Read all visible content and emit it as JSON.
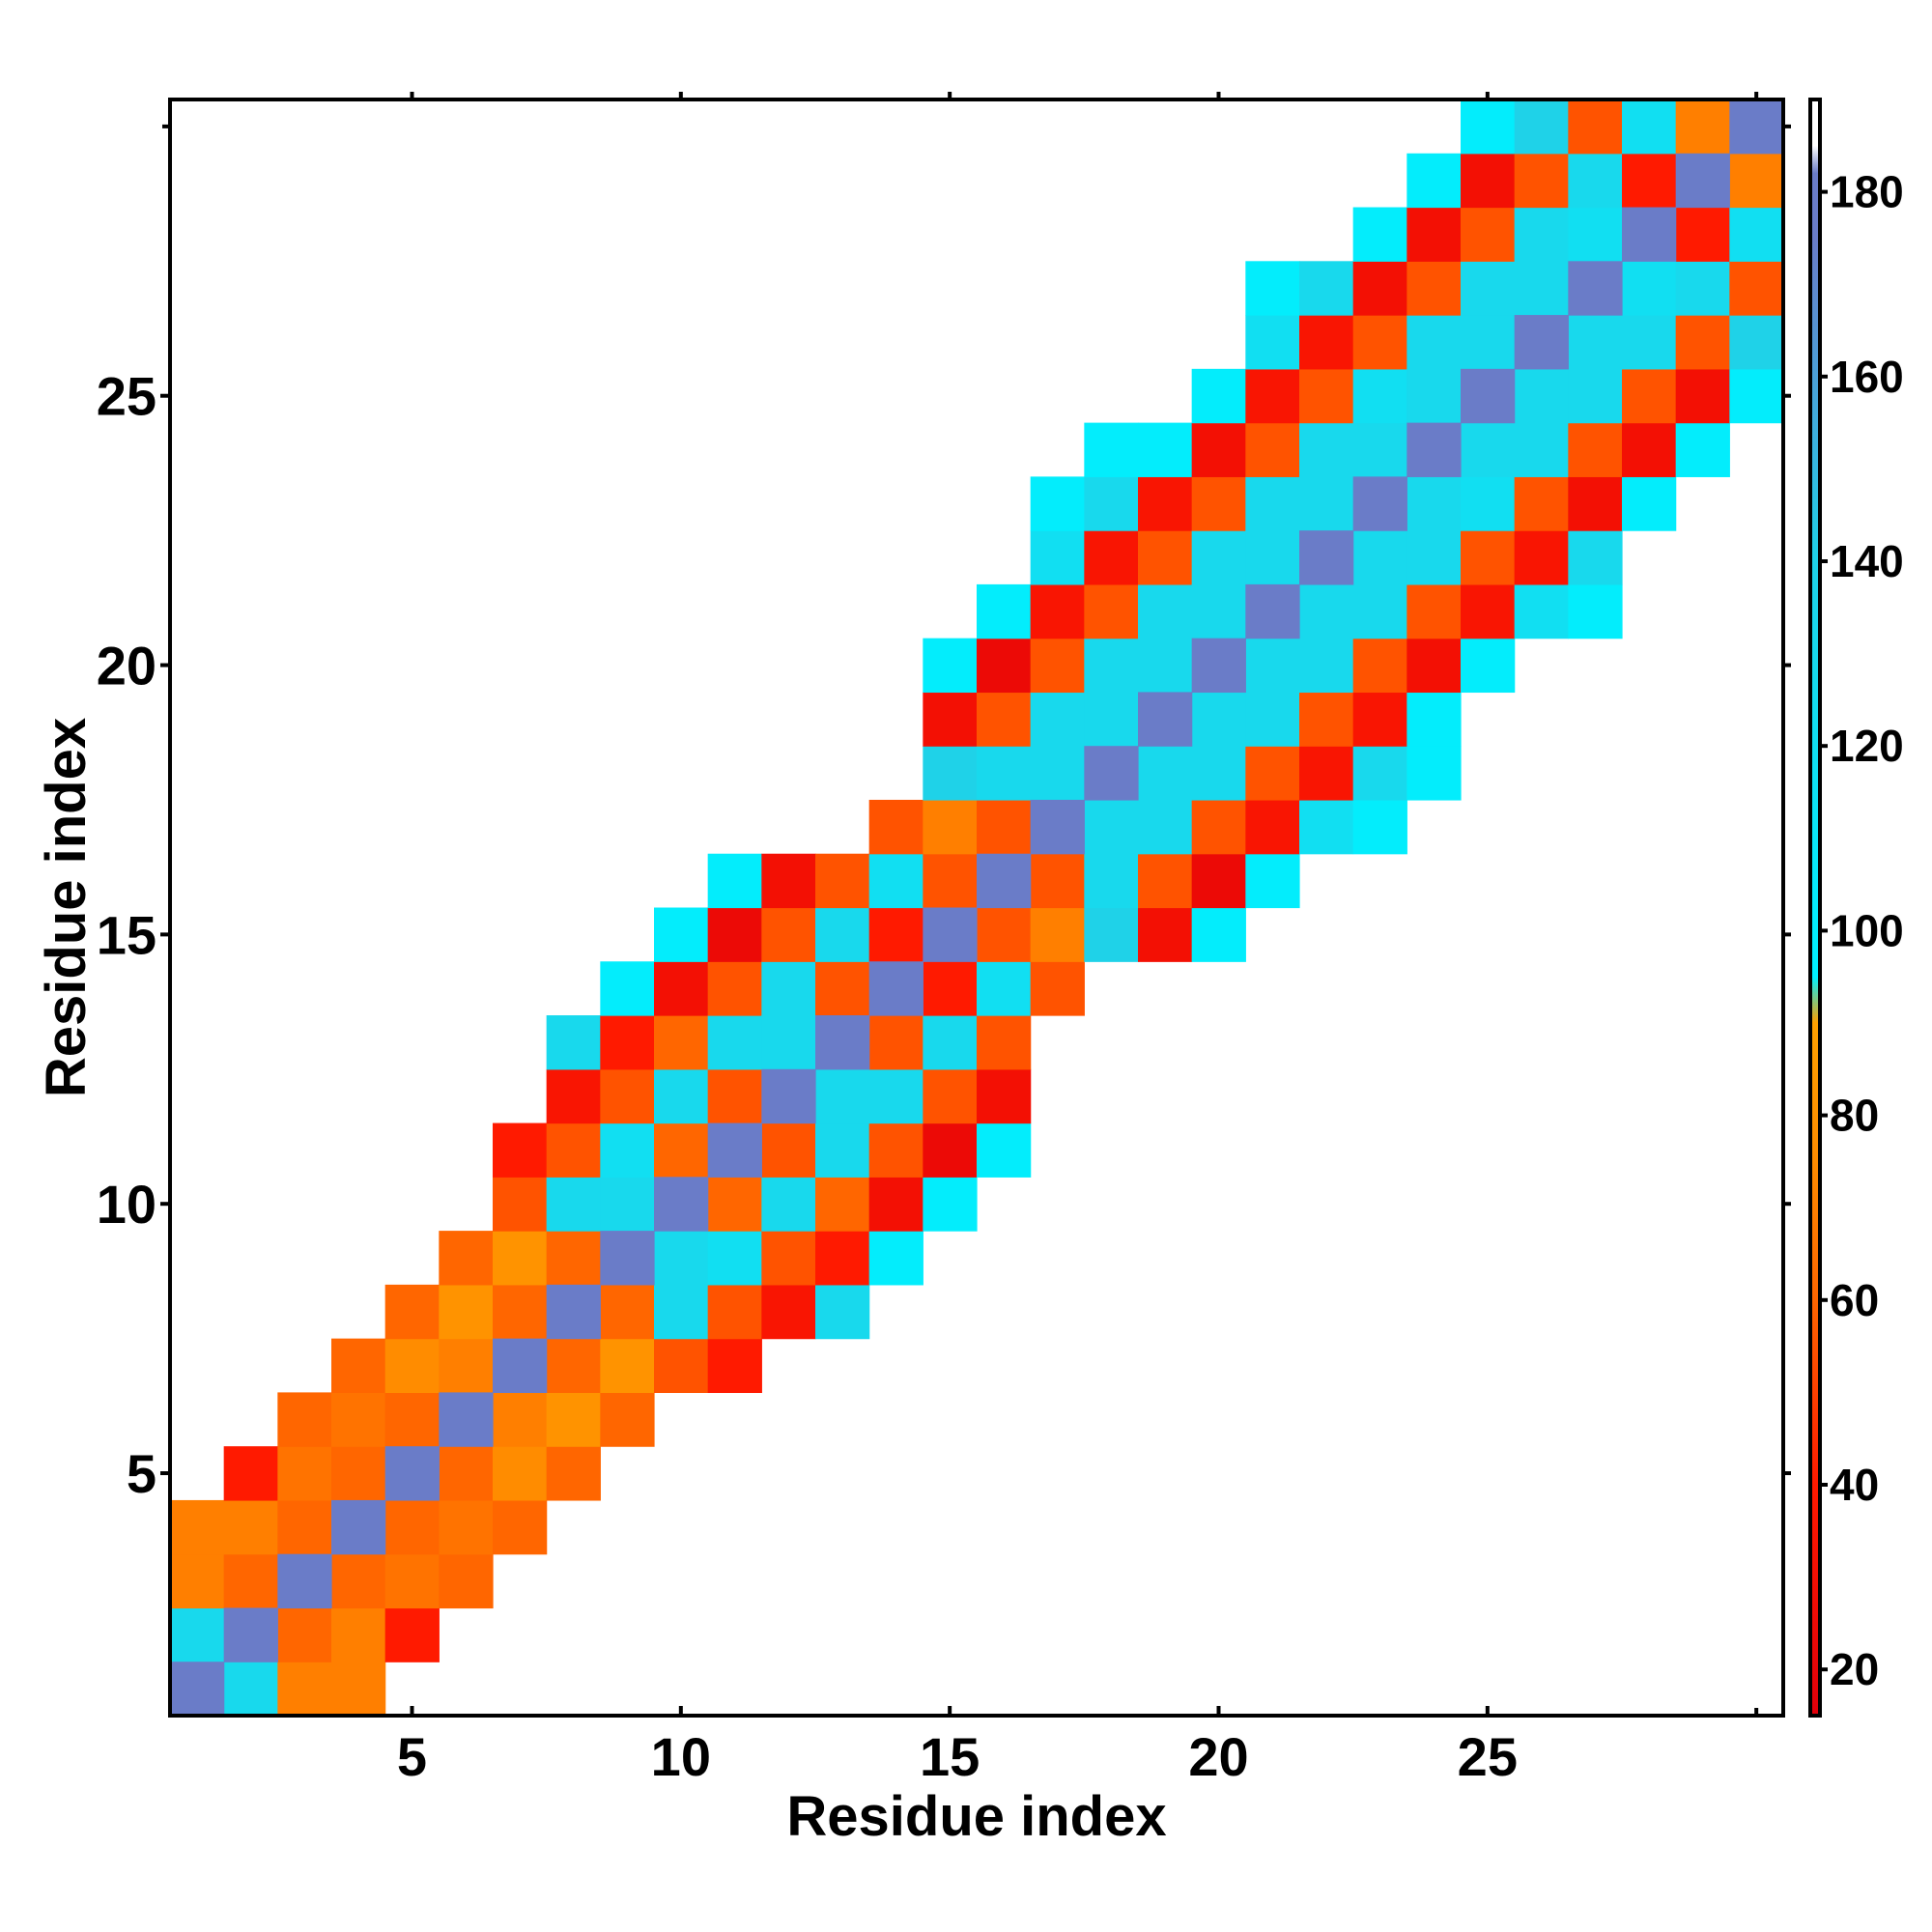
{
  "chart_data": {
    "type": "heatmap",
    "title": "",
    "xlabel": "Residue index",
    "ylabel": "Residue index",
    "xlim": [
      0.5,
      30.5
    ],
    "ylim": [
      0.5,
      30.5
    ],
    "x_ticks": [
      5,
      10,
      15,
      20,
      25
    ],
    "y_ticks": [
      5,
      10,
      15,
      20,
      25
    ],
    "grid": false,
    "colorbar": {
      "range": [
        15,
        190
      ],
      "ticks": [
        20,
        40,
        60,
        80,
        100,
        120,
        140,
        160,
        180
      ],
      "stops": [
        {
          "value": 15,
          "color": "#e0000a"
        },
        {
          "value": 40,
          "color": "#ff1a00"
        },
        {
          "value": 60,
          "color": "#ff6600"
        },
        {
          "value": 75,
          "color": "#ff8c00"
        },
        {
          "value": 90,
          "color": "#ffa000"
        },
        {
          "value": 95,
          "color": "#00f0ff"
        },
        {
          "value": 140,
          "color": "#1fd2e8"
        },
        {
          "value": 160,
          "color": "#4ba0d8"
        },
        {
          "value": 175,
          "color": "#6a7cc8"
        },
        {
          "value": 182,
          "color": "#6a7cc8"
        },
        {
          "value": 185,
          "color": "#ffffff"
        },
        {
          "value": 190,
          "color": "#ffffff"
        }
      ]
    },
    "diagonal_value": 180,
    "cells": [
      [
        1,
        2,
        130
      ],
      [
        1,
        3,
        70
      ],
      [
        1,
        4,
        70
      ],
      [
        2,
        3,
        60
      ],
      [
        2,
        4,
        70
      ],
      [
        2,
        5,
        40
      ],
      [
        3,
        4,
        60
      ],
      [
        3,
        5,
        65
      ],
      [
        3,
        6,
        60
      ],
      [
        4,
        5,
        60
      ],
      [
        4,
        6,
        65
      ],
      [
        4,
        7,
        60
      ],
      [
        5,
        6,
        60
      ],
      [
        5,
        7,
        75
      ],
      [
        5,
        8,
        60
      ],
      [
        6,
        7,
        70
      ],
      [
        6,
        8,
        80
      ],
      [
        6,
        9,
        60
      ],
      [
        7,
        8,
        60
      ],
      [
        7,
        9,
        80
      ],
      [
        7,
        10,
        55
      ],
      [
        7,
        11,
        40
      ],
      [
        8,
        9,
        60
      ],
      [
        8,
        10,
        130
      ],
      [
        8,
        11,
        55
      ],
      [
        8,
        12,
        35
      ],
      [
        8,
        13,
        130
      ],
      [
        9,
        10,
        130
      ],
      [
        9,
        11,
        120
      ],
      [
        9,
        12,
        55
      ],
      [
        9,
        13,
        40
      ],
      [
        9,
        14,
        100
      ],
      [
        10,
        11,
        60
      ],
      [
        10,
        12,
        130
      ],
      [
        10,
        13,
        60
      ],
      [
        10,
        14,
        30
      ],
      [
        10,
        15,
        100
      ],
      [
        11,
        12,
        55
      ],
      [
        11,
        13,
        130
      ],
      [
        11,
        14,
        55
      ],
      [
        11,
        15,
        25
      ],
      [
        11,
        16,
        100
      ],
      [
        12,
        13,
        130
      ],
      [
        12,
        14,
        130
      ],
      [
        12,
        15,
        55
      ],
      [
        12,
        16,
        30
      ],
      [
        13,
        14,
        55
      ],
      [
        13,
        15,
        130
      ],
      [
        13,
        16,
        55
      ],
      [
        14,
        15,
        40
      ],
      [
        14,
        16,
        120
      ],
      [
        14,
        17,
        55
      ],
      [
        15,
        16,
        55
      ],
      [
        15,
        17,
        70
      ],
      [
        15,
        18,
        140
      ],
      [
        15,
        19,
        30
      ],
      [
        15,
        20,
        100
      ],
      [
        16,
        17,
        55
      ],
      [
        16,
        18,
        130
      ],
      [
        16,
        19,
        55
      ],
      [
        16,
        20,
        25
      ],
      [
        16,
        21,
        100
      ],
      [
        17,
        18,
        130
      ],
      [
        17,
        19,
        130
      ],
      [
        17,
        20,
        55
      ],
      [
        17,
        21,
        35
      ],
      [
        17,
        22,
        120
      ],
      [
        17,
        23,
        100
      ],
      [
        18,
        19,
        130
      ],
      [
        18,
        20,
        130
      ],
      [
        18,
        21,
        55
      ],
      [
        18,
        22,
        35
      ],
      [
        18,
        23,
        130
      ],
      [
        18,
        24,
        100
      ],
      [
        19,
        20,
        130
      ],
      [
        19,
        21,
        130
      ],
      [
        19,
        22,
        55
      ],
      [
        19,
        23,
        35
      ],
      [
        19,
        24,
        100
      ],
      [
        20,
        21,
        130
      ],
      [
        20,
        22,
        130
      ],
      [
        20,
        23,
        55
      ],
      [
        20,
        24,
        30
      ],
      [
        20,
        25,
        100
      ],
      [
        21,
        22,
        130
      ],
      [
        21,
        23,
        130
      ],
      [
        21,
        24,
        55
      ],
      [
        21,
        25,
        35
      ],
      [
        21,
        26,
        120
      ],
      [
        21,
        27,
        100
      ],
      [
        22,
        23,
        130
      ],
      [
        22,
        24,
        130
      ],
      [
        22,
        25,
        55
      ],
      [
        22,
        26,
        35
      ],
      [
        22,
        27,
        130
      ],
      [
        23,
        24,
        130
      ],
      [
        23,
        25,
        120
      ],
      [
        23,
        26,
        55
      ],
      [
        23,
        27,
        30
      ],
      [
        23,
        28,
        100
      ],
      [
        24,
        25,
        130
      ],
      [
        24,
        26,
        130
      ],
      [
        24,
        27,
        55
      ],
      [
        24,
        28,
        30
      ],
      [
        24,
        29,
        100
      ],
      [
        25,
        26,
        130
      ],
      [
        25,
        27,
        130
      ],
      [
        25,
        28,
        55
      ],
      [
        25,
        29,
        30
      ],
      [
        25,
        30,
        100
      ],
      [
        26,
        27,
        130
      ],
      [
        26,
        28,
        130
      ],
      [
        26,
        29,
        55
      ],
      [
        26,
        30,
        140
      ],
      [
        27,
        28,
        120
      ],
      [
        27,
        29,
        130
      ],
      [
        27,
        30,
        55
      ],
      [
        28,
        29,
        40
      ],
      [
        28,
        30,
        120
      ],
      [
        29,
        30,
        70
      ]
    ]
  }
}
